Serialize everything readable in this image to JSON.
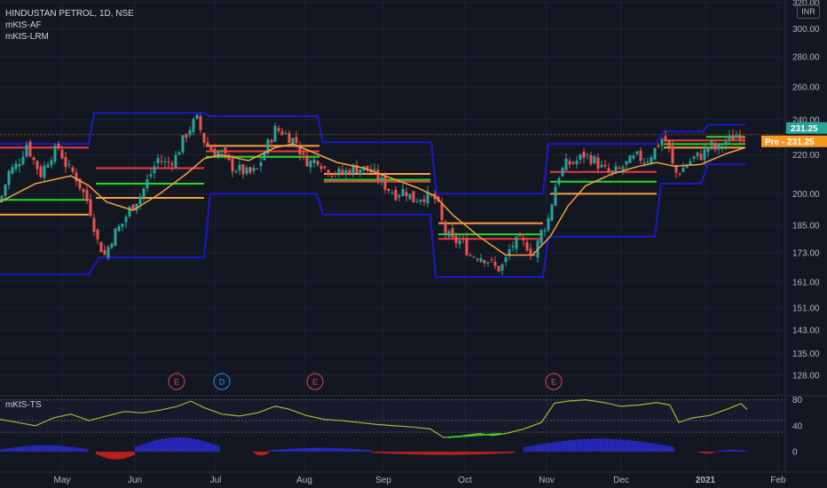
{
  "legend": {
    "symbol": "HINDUSTAN PETROL, 1D, NSE",
    "ind1": "mKtS-AF",
    "ind2": "mKtS-LRM"
  },
  "currency": "INR",
  "subpane_title": "mKtS-TS",
  "badges": {
    "last": "231.25",
    "pre_label": "Pre",
    "pre_value": "231.25"
  },
  "event_markers": [
    "E",
    "D",
    "E",
    "E"
  ],
  "colors": {
    "background": "#131722",
    "up": "#26a69a",
    "down": "#ef5350",
    "channel": "#1a1acb",
    "ma": "#f7a13a",
    "level_red": "#f23645",
    "level_green": "#22dd22",
    "level_orange": "#f7a13a",
    "osc_line": "#a8b830",
    "hist_blue": "#2a2ad6",
    "hist_red": "#e02020",
    "last_badge": "#26a69a",
    "pre_badge": "#f89820"
  },
  "chart_data": {
    "type": "candlestick",
    "title": "HINDUSTAN PETROL, 1D, NSE",
    "y_scale": "log",
    "ylim": [
      122,
      322
    ],
    "y_ticks": [
      "320.00",
      "300.00",
      "280.00",
      "260.00",
      "240.00",
      "220.00",
      "200.00",
      "185.00",
      "173.00",
      "161.00",
      "151.00",
      "143.00",
      "135.00",
      "128.00"
    ],
    "x_ticks": [
      "May",
      "Jun",
      "Jul",
      "Aug",
      "Sep",
      "Oct",
      "Nov",
      "Dec",
      "2021",
      "Feb"
    ],
    "last_price": 231.25,
    "close_path": [
      [
        0,
        196
      ],
      [
        10,
        211
      ],
      [
        20,
        215
      ],
      [
        30,
        226
      ],
      [
        38,
        217
      ],
      [
        46,
        210
      ],
      [
        56,
        219
      ],
      [
        66,
        224
      ],
      [
        76,
        213
      ],
      [
        84,
        210
      ],
      [
        92,
        202
      ],
      [
        100,
        195
      ],
      [
        110,
        178
      ],
      [
        118,
        172
      ],
      [
        128,
        181
      ],
      [
        138,
        186
      ],
      [
        148,
        194
      ],
      [
        158,
        199
      ],
      [
        168,
        208
      ],
      [
        178,
        218
      ],
      [
        188,
        215
      ],
      [
        198,
        219
      ],
      [
        208,
        230
      ],
      [
        216,
        237
      ],
      [
        222,
        240
      ],
      [
        230,
        228
      ],
      [
        240,
        222
      ],
      [
        250,
        221
      ],
      [
        260,
        214
      ],
      [
        270,
        212
      ],
      [
        280,
        210
      ],
      [
        290,
        212
      ],
      [
        300,
        224
      ],
      [
        310,
        234
      ],
      [
        318,
        233
      ],
      [
        326,
        230
      ],
      [
        334,
        227
      ],
      [
        342,
        218
      ],
      [
        350,
        216
      ],
      [
        358,
        218
      ],
      [
        366,
        213
      ],
      [
        376,
        211
      ],
      [
        386,
        210
      ],
      [
        396,
        213
      ],
      [
        406,
        213
      ],
      [
        416,
        212
      ],
      [
        426,
        208
      ],
      [
        436,
        203
      ],
      [
        446,
        200
      ],
      [
        456,
        202
      ],
      [
        466,
        197
      ],
      [
        476,
        199
      ],
      [
        486,
        198
      ],
      [
        492,
        197
      ],
      [
        500,
        183
      ],
      [
        510,
        178
      ],
      [
        520,
        178
      ],
      [
        530,
        172
      ],
      [
        540,
        172
      ],
      [
        550,
        170
      ],
      [
        560,
        166
      ],
      [
        568,
        168
      ],
      [
        576,
        176
      ],
      [
        584,
        178
      ],
      [
        594,
        176
      ],
      [
        602,
        172
      ],
      [
        610,
        182
      ],
      [
        618,
        188
      ],
      [
        628,
        208
      ],
      [
        638,
        215
      ],
      [
        648,
        216
      ],
      [
        658,
        220
      ],
      [
        668,
        218
      ],
      [
        678,
        213
      ],
      [
        688,
        210
      ],
      [
        698,
        212
      ],
      [
        708,
        216
      ],
      [
        718,
        219
      ],
      [
        728,
        217
      ],
      [
        738,
        223
      ],
      [
        746,
        229
      ],
      [
        752,
        227
      ],
      [
        760,
        210
      ],
      [
        768,
        212
      ],
      [
        776,
        216
      ],
      [
        784,
        219
      ],
      [
        792,
        220
      ],
      [
        800,
        226
      ],
      [
        808,
        222
      ],
      [
        816,
        227
      ],
      [
        824,
        229
      ],
      [
        832,
        232
      ],
      [
        840,
        231.25
      ]
    ],
    "moving_average": [
      [
        0,
        196
      ],
      [
        40,
        205
      ],
      [
        80,
        209
      ],
      [
        100,
        204
      ],
      [
        120,
        196
      ],
      [
        150,
        192
      ],
      [
        180,
        200
      ],
      [
        210,
        210
      ],
      [
        230,
        218
      ],
      [
        250,
        220
      ],
      [
        280,
        217
      ],
      [
        310,
        224
      ],
      [
        330,
        226
      ],
      [
        350,
        222
      ],
      [
        380,
        216
      ],
      [
        410,
        213
      ],
      [
        440,
        208
      ],
      [
        470,
        203
      ],
      [
        490,
        199
      ],
      [
        510,
        190
      ],
      [
        540,
        180
      ],
      [
        570,
        172
      ],
      [
        600,
        172
      ],
      [
        620,
        180
      ],
      [
        640,
        194
      ],
      [
        660,
        204
      ],
      [
        690,
        210
      ],
      [
        720,
        214
      ],
      [
        740,
        216
      ],
      [
        760,
        214
      ],
      [
        790,
        215
      ],
      [
        820,
        221
      ],
      [
        840,
        224
      ]
    ],
    "channel": [
      [
        0,
        164
      ],
      [
        100,
        164
      ],
      [
        112,
        171
      ],
      [
        230,
        171
      ],
      [
        237,
        200
      ],
      [
        357,
        200
      ],
      [
        364,
        190
      ],
      [
        485,
        190
      ],
      [
        491,
        163
      ],
      [
        612,
        163
      ],
      [
        618,
        180
      ],
      [
        738,
        180
      ],
      [
        745,
        205
      ],
      [
        790,
        205
      ],
      [
        798,
        215
      ],
      [
        840,
        215
      ],
      [
        0,
        226
      ],
      [
        100,
        226
      ],
      [
        106,
        244
      ],
      [
        230,
        244
      ],
      [
        236,
        242
      ],
      [
        358,
        242
      ],
      [
        364,
        227
      ],
      [
        486,
        227
      ],
      [
        492,
        200
      ],
      [
        612,
        200
      ],
      [
        618,
        226
      ],
      [
        738,
        226
      ],
      [
        748,
        233
      ],
      [
        792,
        233
      ],
      [
        798,
        237
      ],
      [
        840,
        237
      ]
    ],
    "levels": [
      {
        "color": "red",
        "x0": 0,
        "x1": 100,
        "value": 224
      },
      {
        "color": "red",
        "x0": 108,
        "x1": 230,
        "value": 213
      },
      {
        "color": "green",
        "x0": 0,
        "x1": 100,
        "value": 197
      },
      {
        "color": "green",
        "x0": 108,
        "x1": 230,
        "value": 205
      },
      {
        "color": "orange",
        "x0": 0,
        "x1": 100,
        "value": 190
      },
      {
        "color": "orange",
        "x0": 108,
        "x1": 230,
        "value": 198
      },
      {
        "color": "red",
        "x0": 232,
        "x1": 360,
        "value": 222
      },
      {
        "color": "green",
        "x0": 232,
        "x1": 360,
        "value": 219
      },
      {
        "color": "orange",
        "x0": 232,
        "x1": 360,
        "value": 225
      },
      {
        "color": "orange",
        "x0": 365,
        "x1": 485,
        "value": 210
      },
      {
        "color": "red",
        "x0": 365,
        "x1": 485,
        "value": 206
      },
      {
        "color": "green",
        "x0": 365,
        "x1": 485,
        "value": 207
      },
      {
        "color": "orange",
        "x0": 494,
        "x1": 612,
        "value": 186
      },
      {
        "color": "red",
        "x0": 494,
        "x1": 612,
        "value": 179
      },
      {
        "color": "green",
        "x0": 494,
        "x1": 612,
        "value": 181
      },
      {
        "color": "red",
        "x0": 620,
        "x1": 740,
        "value": 211
      },
      {
        "color": "green",
        "x0": 620,
        "x1": 740,
        "value": 206
      },
      {
        "color": "orange",
        "x0": 620,
        "x1": 740,
        "value": 200
      },
      {
        "color": "orange",
        "x0": 748,
        "x1": 840,
        "value": 224
      },
      {
        "color": "red",
        "x0": 748,
        "x1": 840,
        "value": 228
      },
      {
        "color": "green",
        "x0": 748,
        "x1": 840,
        "value": 226
      },
      {
        "color": "green",
        "x0": 796,
        "x1": 840,
        "value": 230
      }
    ],
    "oscillator": {
      "ylim": [
        -15,
        85
      ],
      "y_ticks": [
        "80",
        "40",
        "0"
      ],
      "line": [
        [
          0,
          50
        ],
        [
          20,
          45
        ],
        [
          40,
          40
        ],
        [
          60,
          52
        ],
        [
          80,
          58
        ],
        [
          100,
          48
        ],
        [
          120,
          55
        ],
        [
          140,
          62
        ],
        [
          160,
          60
        ],
        [
          180,
          64
        ],
        [
          200,
          70
        ],
        [
          215,
          78
        ],
        [
          230,
          68
        ],
        [
          250,
          58
        ],
        [
          270,
          55
        ],
        [
          290,
          60
        ],
        [
          310,
          70
        ],
        [
          325,
          66
        ],
        [
          345,
          56
        ],
        [
          365,
          50
        ],
        [
          385,
          48
        ],
        [
          405,
          45
        ],
        [
          425,
          42
        ],
        [
          445,
          40
        ],
        [
          465,
          38
        ],
        [
          485,
          35
        ],
        [
          500,
          22
        ],
        [
          520,
          24
        ],
        [
          540,
          28
        ],
        [
          555,
          25
        ],
        [
          570,
          28
        ],
        [
          590,
          35
        ],
        [
          610,
          45
        ],
        [
          625,
          75
        ],
        [
          640,
          78
        ],
        [
          660,
          80
        ],
        [
          680,
          76
        ],
        [
          700,
          70
        ],
        [
          720,
          72
        ],
        [
          740,
          76
        ],
        [
          755,
          72
        ],
        [
          765,
          45
        ],
        [
          780,
          52
        ],
        [
          800,
          56
        ],
        [
          820,
          66
        ],
        [
          835,
          74
        ],
        [
          842,
          65
        ]
      ],
      "histogram": [
        {
          "color": "blue",
          "x0": 0,
          "x1": 100,
          "value": 10
        },
        {
          "color": "red",
          "x0": 108,
          "x1": 152,
          "value": -12
        },
        {
          "color": "blue",
          "x0": 152,
          "x1": 248,
          "value": 22
        },
        {
          "color": "red",
          "x0": 285,
          "x1": 302,
          "value": -6
        },
        {
          "color": "blue",
          "x0": 302,
          "x1": 420,
          "value": 6
        },
        {
          "color": "red",
          "x0": 420,
          "x1": 580,
          "value": -5
        },
        {
          "color": "blue",
          "x0": 590,
          "x1": 760,
          "value": 20
        },
        {
          "color": "red",
          "x0": 786,
          "x1": 806,
          "value": -3
        },
        {
          "color": "blue",
          "x0": 806,
          "x1": 842,
          "value": 3
        }
      ]
    }
  }
}
